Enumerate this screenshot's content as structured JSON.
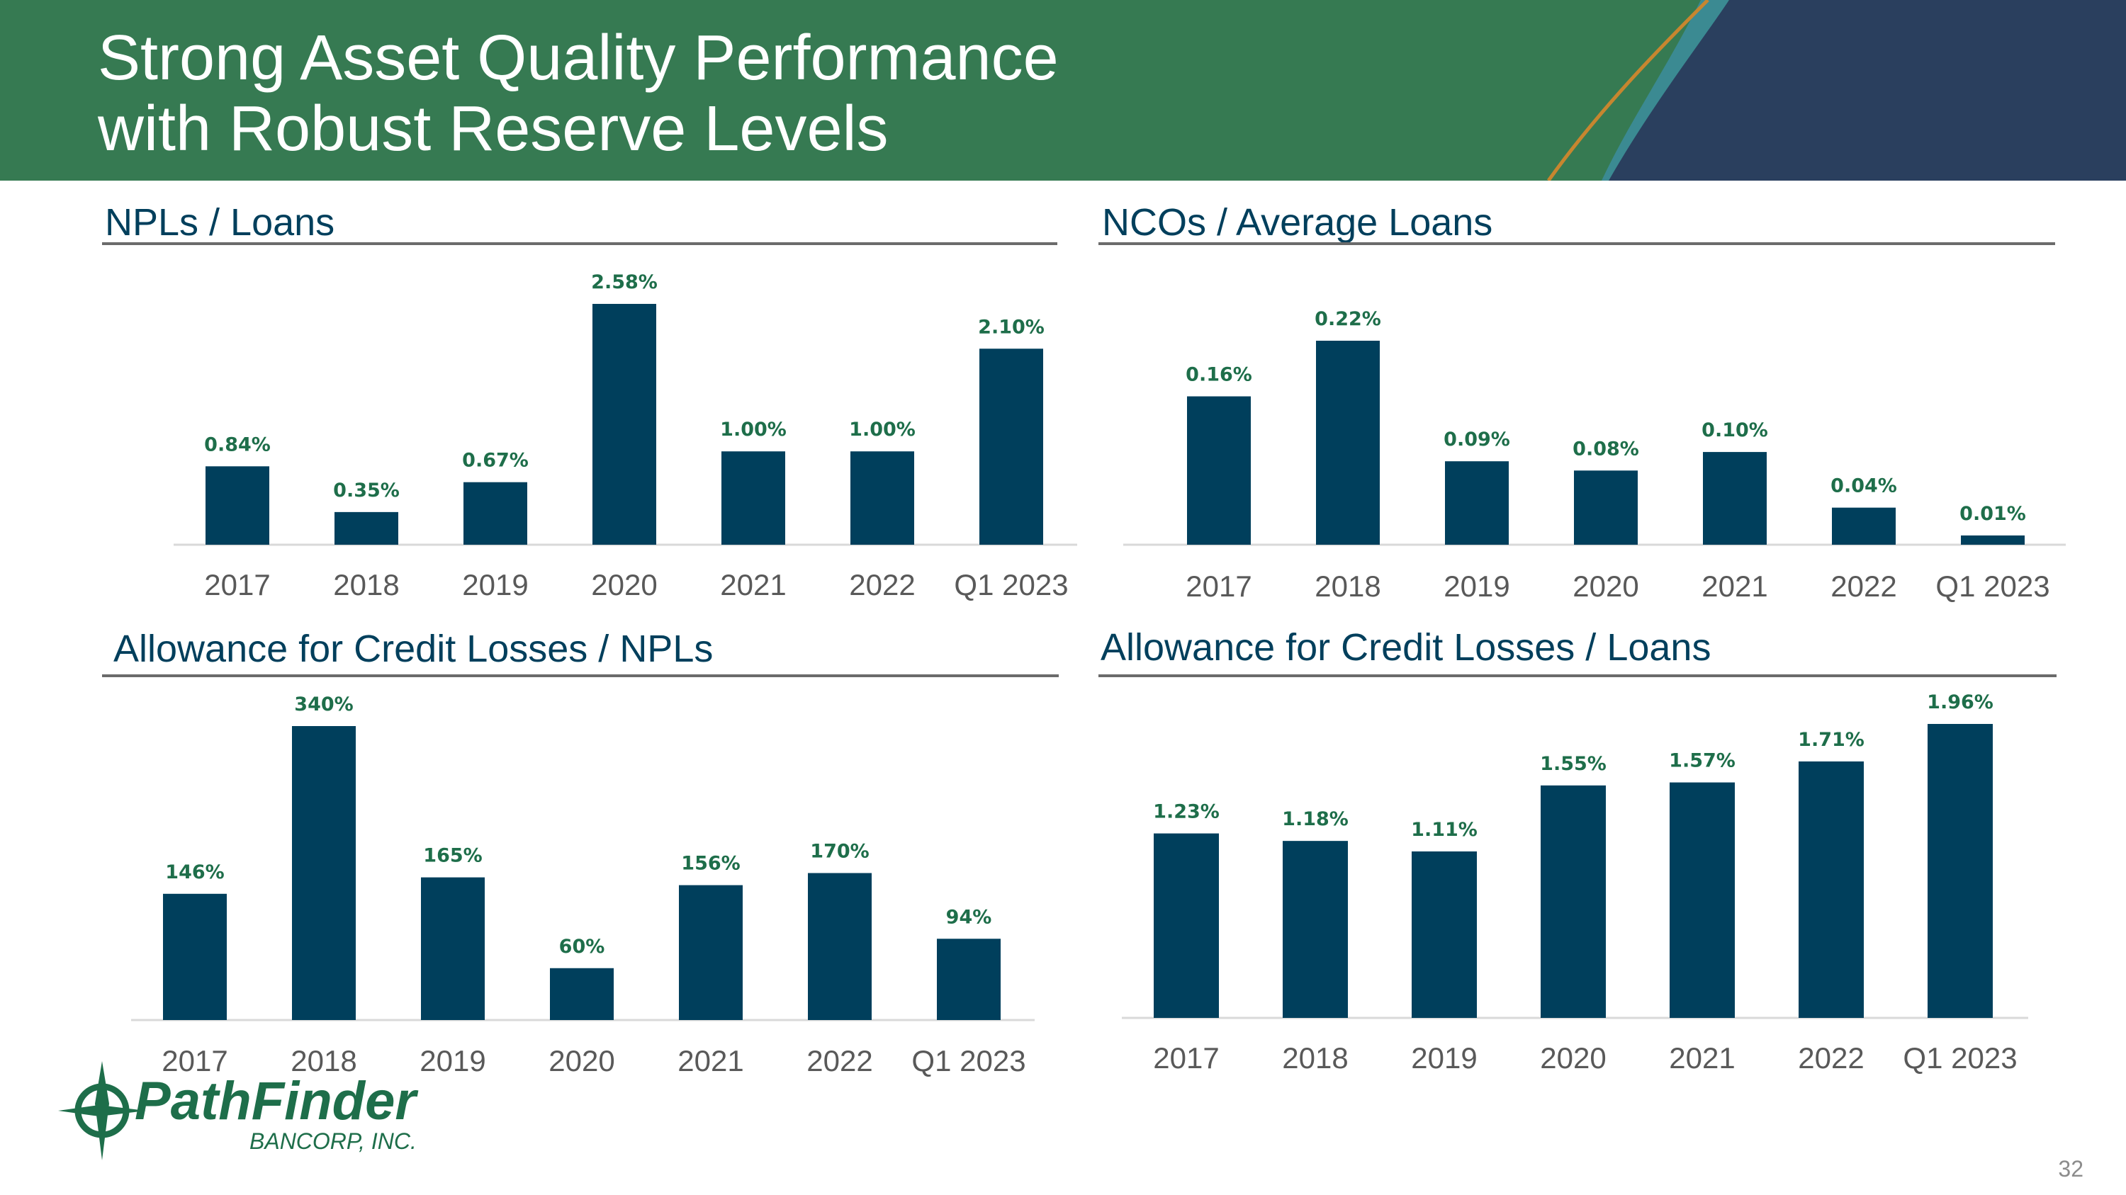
{
  "header": {
    "title_line1": "Strong Asset Quality Performance",
    "title_line2": "with Robust Reserve Levels",
    "colors": {
      "green": "#367a52",
      "navy": "#2a3f5e",
      "teal": "#3b8a92",
      "orange": "#c7862f"
    }
  },
  "colors": {
    "bar": "#003f5c",
    "data_label": "#1e6e4a",
    "tick_label": "#595959",
    "baseline": "#d9d9d9",
    "panel_title": "#003f5c"
  },
  "chart_data": [
    {
      "type": "bar",
      "title": "NPLs / Loans",
      "categories": [
        "2017",
        "2018",
        "2019",
        "2020",
        "2021",
        "2022",
        "Q1 2023"
      ],
      "values": [
        0.84,
        0.35,
        0.67,
        2.58,
        1.0,
        1.0,
        2.1
      ],
      "labels": [
        "0.84%",
        "0.35%",
        "0.67%",
        "2.58%",
        "1.00%",
        "1.00%",
        "2.10%"
      ],
      "ylim": [
        0,
        2.58
      ],
      "grid": false,
      "legend": "none",
      "xlabel": "",
      "ylabel": ""
    },
    {
      "type": "bar",
      "title": "NCOs / Average Loans",
      "categories": [
        "2017",
        "2018",
        "2019",
        "2020",
        "2021",
        "2022",
        "Q1 2023"
      ],
      "values": [
        0.16,
        0.22,
        0.09,
        0.08,
        0.1,
        0.04,
        0.01
      ],
      "labels": [
        "0.16%",
        "0.22%",
        "0.09%",
        "0.08%",
        "0.10%",
        "0.04%",
        "0.01%"
      ],
      "ylim": [
        0,
        0.22
      ],
      "grid": false,
      "legend": "none",
      "xlabel": "",
      "ylabel": ""
    },
    {
      "type": "bar",
      "title": "Allowance for Credit Losses / NPLs",
      "categories": [
        "2017",
        "2018",
        "2019",
        "2020",
        "2021",
        "2022",
        "Q1 2023"
      ],
      "values": [
        146,
        340,
        165,
        60,
        156,
        170,
        94
      ],
      "labels": [
        "146%",
        "340%",
        "165%",
        "60%",
        "156%",
        "170%",
        "94%"
      ],
      "ylim": [
        0,
        340
      ],
      "grid": false,
      "legend": "none",
      "xlabel": "",
      "ylabel": ""
    },
    {
      "type": "bar",
      "title": "Allowance for Credit Losses / Loans",
      "categories": [
        "2017",
        "2018",
        "2019",
        "2020",
        "2021",
        "2022",
        "Q1 2023"
      ],
      "values": [
        1.23,
        1.18,
        1.11,
        1.55,
        1.57,
        1.71,
        1.96
      ],
      "labels": [
        "1.23%",
        "1.18%",
        "1.11%",
        "1.55%",
        "1.57%",
        "1.71%",
        "1.96%"
      ],
      "ylim": [
        0,
        1.96
      ],
      "grid": false,
      "legend": "none",
      "xlabel": "",
      "ylabel": ""
    }
  ],
  "logo": {
    "name": "PathFinder",
    "sub": "BANCORP, INC."
  },
  "page_number": "32"
}
